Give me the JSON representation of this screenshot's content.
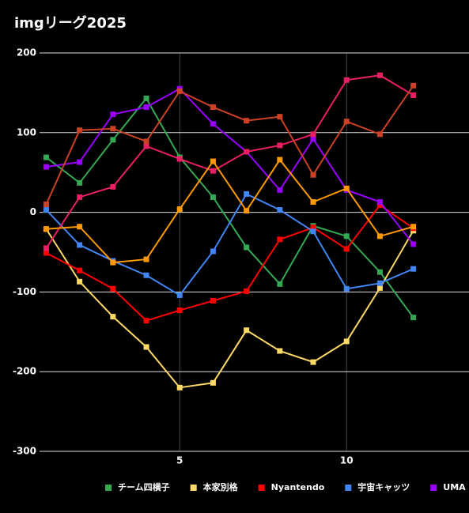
{
  "chart_data": {
    "type": "line",
    "title": "imgリーグ2025",
    "x": [
      1,
      2,
      3,
      4,
      5,
      6,
      7,
      8,
      9,
      10,
      11,
      12
    ],
    "xlim": [
      0.8,
      14
    ],
    "xticks": [
      5,
      10
    ],
    "ylim": [
      -300,
      200
    ],
    "yticks": [
      -300,
      -200,
      -100,
      0,
      100,
      200
    ],
    "grid": true,
    "legend": "bottom",
    "series": [
      {
        "name": "チーム四横子",
        "color": "#34a853",
        "values": [
          69,
          37,
          91,
          143,
          69,
          19,
          -44,
          -90,
          -17,
          -30,
          -75,
          -132
        ]
      },
      {
        "name": "本家別格",
        "color": "#ffd966",
        "values": [
          -21,
          -87,
          -131,
          -169,
          -220,
          -214,
          -148,
          -174,
          -188,
          -162,
          -95,
          -23
        ]
      },
      {
        "name": "Nyantendo",
        "color": "#ff0000",
        "values": [
          -51,
          -73,
          -96,
          -136,
          -123,
          -111,
          -99,
          -34,
          -19,
          -46,
          9,
          -20
        ]
      },
      {
        "name": "宇宙キャッツ",
        "color": "#4285f4",
        "values": [
          3,
          -41,
          -61,
          -79,
          -104,
          -49,
          23,
          3,
          -24,
          -96,
          -89,
          -71
        ]
      },
      {
        "name": "UMA",
        "color": "#9900ff",
        "values": [
          57,
          63,
          123,
          132,
          155,
          111,
          76,
          28,
          92,
          28,
          13,
          -40
        ]
      },
      {
        "color": "#e91e63",
        "values": [
          -45,
          19,
          32,
          83,
          67,
          52,
          76,
          84,
          98,
          166,
          172,
          147
        ]
      },
      {
        "color": "#cc4125",
        "values": [
          10,
          103,
          105,
          89,
          152,
          132,
          115,
          120,
          47,
          114,
          98,
          159
        ]
      },
      {
        "color": "#ff9900",
        "values": [
          -21,
          -18,
          -63,
          -59,
          4,
          64,
          2,
          66,
          13,
          30,
          -30,
          -18
        ]
      }
    ]
  }
}
